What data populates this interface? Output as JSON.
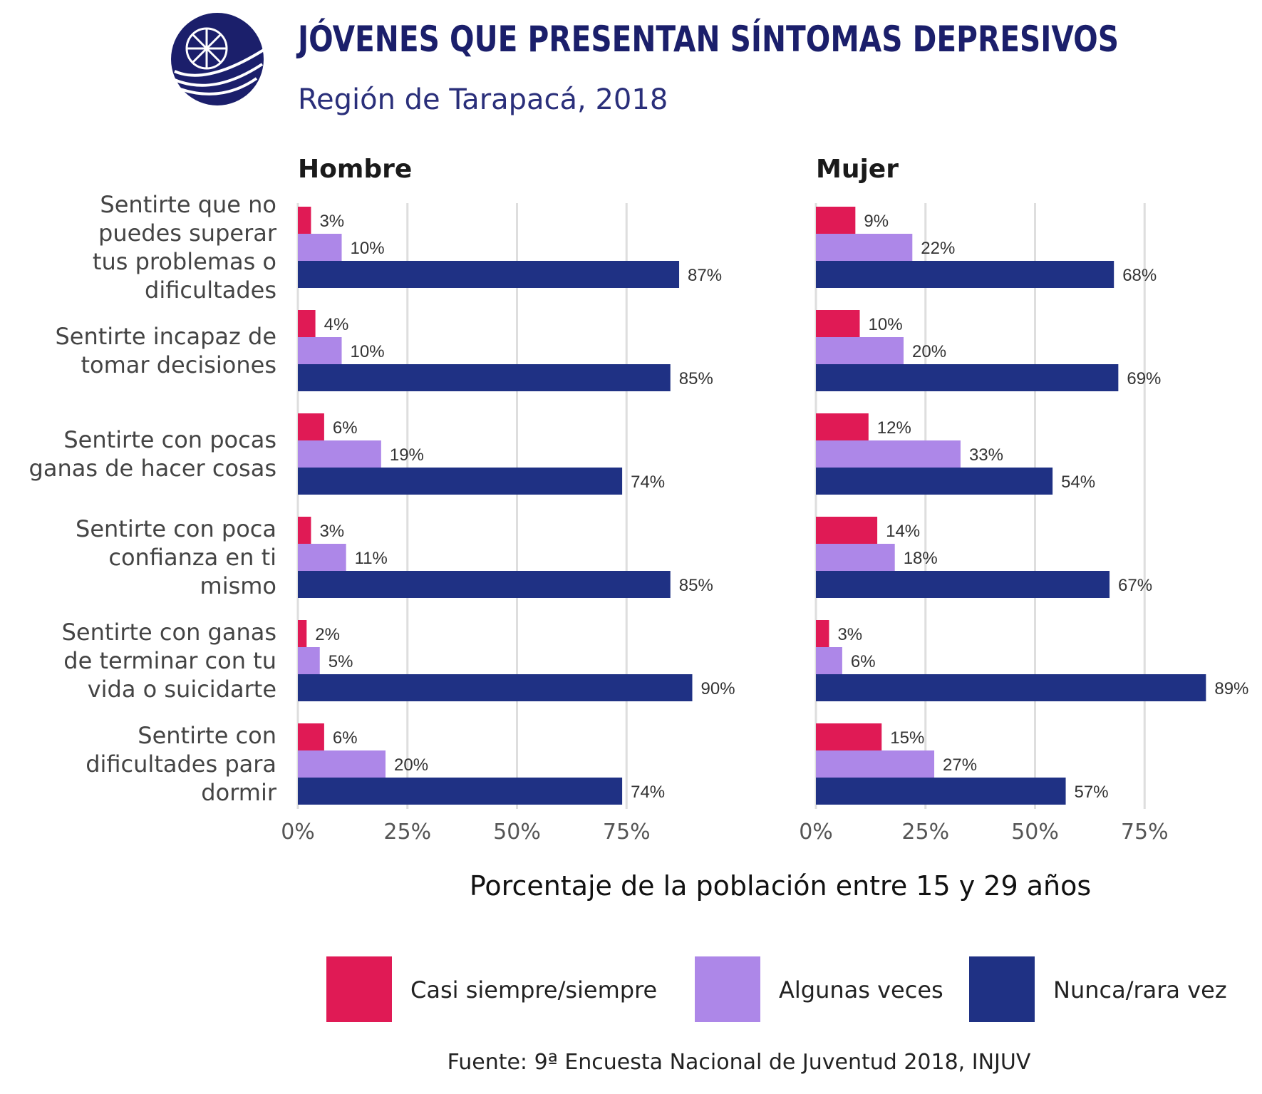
{
  "title": "JÓVENES QUE PRESENTAN SÍNTOMAS DEPRESIVOS",
  "subtitle": "Región de Tarapacá, 2018",
  "source": "Fuente: 9ª Encuesta Nacional de Juventud 2018, INJUV",
  "logo_icon": "injuv-globe-logo-icon",
  "colors": {
    "title": "#1b1f6b",
    "Casi siempre/siempre": "#e01a55",
    "Algunas veces": "#ad87e8",
    "Nunca/rara vez": "#1f3184"
  },
  "chart_data": {
    "type": "bar",
    "orientation": "horizontal",
    "title": "JÓVENES QUE PRESENTAN SÍNTOMAS DEPRESIVOS",
    "subtitle": "Región de Tarapacá, 2018",
    "xlabel": "Porcentaje de la población entre 15 y 29 años",
    "ylabel": "",
    "xlim": [
      0,
      100
    ],
    "x_ticks": [
      0,
      25,
      50,
      75
    ],
    "x_tick_labels": [
      "0%",
      "25%",
      "50%",
      "75%"
    ],
    "grid": true,
    "legend_position": "bottom",
    "categories": [
      "Sentirte que no puedes superar tus problemas o dificultades",
      "Sentirte incapaz de tomar decisiones",
      "Sentirte con pocas ganas de hacer cosas",
      "Sentirte con poca confianza en ti mismo",
      "Sentirte con ganas de terminar con tu vida o suicidarte",
      "Sentirte con dificultades para dormir"
    ],
    "category_lines": [
      [
        "Sentirte que no",
        "puedes superar",
        "tus problemas o",
        "dificultades"
      ],
      [
        "Sentirte incapaz de",
        "tomar decisiones"
      ],
      [
        "Sentirte con pocas",
        "ganas de hacer cosas"
      ],
      [
        "Sentirte con poca",
        "confianza en ti",
        "mismo"
      ],
      [
        "Sentirte con ganas",
        "de terminar con tu",
        "vida o suicidarte"
      ],
      [
        "Sentirte con",
        "dificultades para",
        "dormir"
      ]
    ],
    "series_names": [
      "Casi siempre/siempre",
      "Algunas veces",
      "Nunca/rara vez"
    ],
    "panels": [
      {
        "name": "Hombre",
        "series": [
          {
            "name": "Casi siempre/siempre",
            "values": [
              3,
              4,
              6,
              3,
              2,
              6
            ]
          },
          {
            "name": "Algunas veces",
            "values": [
              10,
              10,
              19,
              11,
              5,
              20
            ]
          },
          {
            "name": "Nunca/rara vez",
            "values": [
              87,
              85,
              74,
              85,
              90,
              74
            ]
          }
        ]
      },
      {
        "name": "Mujer",
        "series": [
          {
            "name": "Casi siempre/siempre",
            "values": [
              9,
              10,
              12,
              14,
              3,
              15
            ]
          },
          {
            "name": "Algunas veces",
            "values": [
              22,
              20,
              33,
              18,
              6,
              27
            ]
          },
          {
            "name": "Nunca/rara vez",
            "values": [
              68,
              69,
              54,
              67,
              89,
              57
            ]
          }
        ]
      }
    ]
  }
}
